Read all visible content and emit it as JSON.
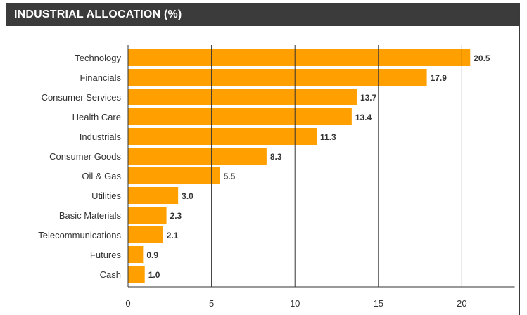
{
  "title": "INDUSTRIAL ALLOCATION (%)",
  "colors": {
    "bar": "#ffa000",
    "header": "#3b3b3b",
    "grid": "#333333",
    "text": "#333333"
  },
  "chart_data": {
    "type": "bar",
    "orientation": "horizontal",
    "title": "INDUSTRIAL ALLOCATION (%)",
    "categories": [
      "Technology",
      "Financials",
      "Consumer Services",
      "Health Care",
      "Industrials",
      "Consumer Goods",
      "Oil & Gas",
      "Utilities",
      "Basic Materials",
      "Telecommunications",
      "Futures",
      "Cash"
    ],
    "values": [
      20.5,
      17.9,
      13.7,
      13.4,
      11.3,
      8.3,
      5.5,
      3.0,
      2.3,
      2.1,
      0.9,
      1.0
    ],
    "value_labels": [
      "20.5",
      "17.9",
      "13.7",
      "13.4",
      "11.3",
      "8.3",
      "5.5",
      "3.0",
      "2.3",
      "2.1",
      "0.9",
      "1.0"
    ],
    "xticks": [
      "0",
      "5",
      "10",
      "15",
      "20"
    ],
    "xlim": [
      0,
      23
    ],
    "grid": true,
    "xlabel": "",
    "ylabel": ""
  }
}
